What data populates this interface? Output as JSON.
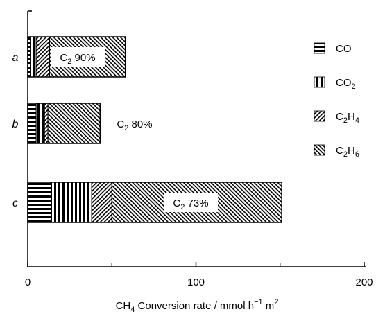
{
  "chart_data": {
    "type": "bar",
    "orientation": "horizontal",
    "title": "",
    "xlabel": "CH4 Conversion rate / mmol h-1 m2",
    "xlabel_parts": {
      "pre": "CH",
      "sub1": "4",
      "mid": " Conversion rate / mmol h",
      "sup1": "−1",
      "mid2": " m",
      "sup2": "2"
    },
    "ylabel": "",
    "xlim": [
      0,
      200
    ],
    "xticks": [
      "0",
      "100",
      "200"
    ],
    "categories": [
      "a",
      "b",
      "c"
    ],
    "series": [
      {
        "name": "CO",
        "values": [
          1.5,
          5,
          14
        ]
      },
      {
        "name": "CO2",
        "values": [
          3.5,
          5,
          24
        ]
      },
      {
        "name": "C2H4",
        "values": [
          8,
          2,
          12
        ]
      },
      {
        "name": "C2H6",
        "values": [
          45,
          31,
          101
        ]
      }
    ],
    "bar_labels": [
      {
        "category": "a",
        "text": "C2 90%",
        "main": "C",
        "sub": "2",
        "rest": " 90%"
      },
      {
        "category": "b",
        "text": "C2 80%",
        "main": "C",
        "sub": "2",
        "rest": " 80%"
      },
      {
        "category": "c",
        "text": "C2 73%",
        "main": "C",
        "sub": "2",
        "rest": " 73%"
      }
    ],
    "legend": {
      "placement": "right",
      "entries": [
        {
          "key": "CO",
          "main": "CO",
          "sub": "",
          "main2": "",
          "sub2": "",
          "pattern": "horizontal-lines"
        },
        {
          "key": "CO2",
          "main": "CO",
          "sub": "2",
          "main2": "",
          "sub2": "",
          "pattern": "vertical-lines"
        },
        {
          "key": "C2H4",
          "main": "C",
          "sub": "2",
          "main2": "H",
          "sub2": "4",
          "pattern": "diagonal-lines-ne"
        },
        {
          "key": "C2H6",
          "main": "C",
          "sub": "2",
          "main2": "H",
          "sub2": "6",
          "pattern": "diagonal-lines-nw"
        }
      ]
    },
    "grid": false
  }
}
